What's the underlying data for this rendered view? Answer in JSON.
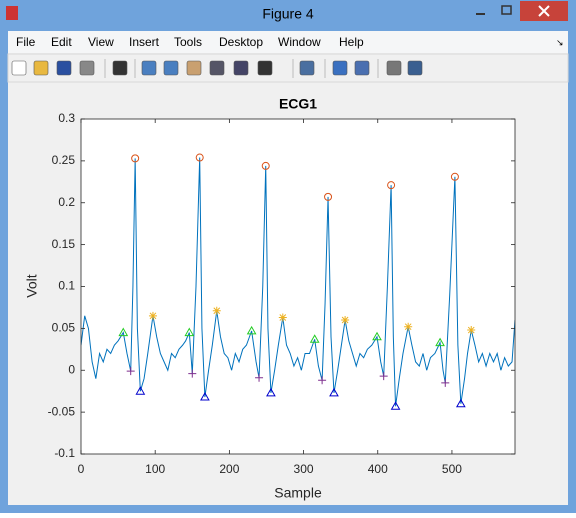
{
  "window": {
    "title": "Figure 4",
    "menu": [
      "File",
      "Edit",
      "View",
      "Insert",
      "Tools",
      "Desktop",
      "Window",
      "Help"
    ]
  },
  "chart_data": {
    "type": "line",
    "title": "ECG1",
    "xlabel": "Sample",
    "ylabel": "Volt",
    "xlim": [
      0,
      585
    ],
    "ylim": [
      -0.1,
      0.3
    ],
    "xticks": [
      0,
      100,
      200,
      300,
      400,
      500
    ],
    "yticks": [
      -0.1,
      -0.05,
      0,
      0.05,
      0.1,
      0.15,
      0.2,
      0.25,
      0.3
    ],
    "series": [
      {
        "color": "#0072bd",
        "marker": "none",
        "x": [
          0,
          5,
          10,
          15,
          20,
          25,
          30,
          35,
          40,
          45,
          50,
          57,
          62,
          67,
          70,
          73,
          76,
          80,
          85,
          90,
          97,
          102,
          107,
          112,
          117,
          122,
          127,
          132,
          137,
          141,
          146,
          150,
          155,
          160,
          163,
          167,
          172,
          177,
          183,
          188,
          193,
          198,
          203,
          208,
          213,
          218,
          223,
          230,
          236,
          240,
          245,
          249,
          252,
          256,
          261,
          266,
          272,
          277,
          282,
          287,
          292,
          297,
          302,
          308,
          315,
          320,
          325,
          329,
          333,
          337,
          341,
          346,
          351,
          356,
          361,
          366,
          371,
          376,
          381,
          386,
          392,
          399,
          404,
          408,
          413,
          418,
          421,
          424,
          429,
          434,
          441,
          446,
          451,
          456,
          461,
          466,
          471,
          477,
          484,
          488,
          491,
          497,
          504,
          508,
          512,
          517,
          521,
          526,
          531,
          536,
          541,
          546,
          551,
          556,
          561,
          566,
          571,
          576,
          581,
          585
        ],
        "values": [
          0.03,
          0.065,
          0.05,
          0.01,
          -0.01,
          0.02,
          0.01,
          0.025,
          0.02,
          0.03,
          0.035,
          0.045,
          0.02,
          -0.001,
          0.1,
          0.253,
          0.05,
          -0.025,
          -0.01,
          0.02,
          0.065,
          0.04,
          0.02,
          0.01,
          0.0,
          0.02,
          0.015,
          0.025,
          0.03,
          0.035,
          0.045,
          -0.004,
          0.1,
          0.254,
          0.05,
          -0.032,
          0.0,
          0.03,
          0.071,
          0.04,
          0.02,
          0.015,
          0.0,
          0.02,
          0.01,
          0.025,
          0.03,
          0.047,
          0.01,
          -0.009,
          0.1,
          0.244,
          0.05,
          -0.027,
          0.0,
          0.03,
          0.063,
          0.03,
          0.02,
          0.005,
          0.015,
          0.0,
          0.02,
          0.02,
          0.037,
          0.005,
          -0.012,
          0.08,
          0.207,
          0.04,
          -0.027,
          0.0,
          0.03,
          0.06,
          0.035,
          0.02,
          0.005,
          0.02,
          0.015,
          0.025,
          0.03,
          0.04,
          0.01,
          -0.007,
          0.1,
          0.221,
          0.04,
          -0.043,
          -0.01,
          0.02,
          0.052,
          0.03,
          0.01,
          0.005,
          0.02,
          0.0,
          0.015,
          0.02,
          0.033,
          0.0,
          -0.015,
          0.09,
          0.231,
          0.03,
          -0.04,
          -0.01,
          0.02,
          0.048,
          0.03,
          0.01,
          0.02,
          0.005,
          0.02,
          0.01,
          0.02,
          0.0,
          0.015,
          0.005,
          0.01,
          0.06
        ]
      },
      {
        "color": "#d95319",
        "marker": "o",
        "x": [
          73,
          160,
          249,
          333,
          418,
          504
        ],
        "values": [
          0.253,
          0.254,
          0.244,
          0.207,
          0.221,
          0.231
        ]
      },
      {
        "color": "#22cc22",
        "marker": "^",
        "x": [
          57,
          146,
          230,
          315,
          399,
          484
        ],
        "values": [
          0.045,
          0.045,
          0.047,
          0.037,
          0.04,
          0.033
        ]
      },
      {
        "color": "#edb120",
        "marker": "*",
        "x": [
          97,
          183,
          272,
          356,
          441,
          526
        ],
        "values": [
          0.065,
          0.071,
          0.063,
          0.06,
          0.052,
          0.048
        ]
      },
      {
        "color": "#7e2f8e",
        "marker": "+",
        "x": [
          67,
          150,
          240,
          325,
          408,
          491
        ],
        "values": [
          -0.001,
          -0.004,
          -0.009,
          -0.012,
          -0.007,
          -0.015
        ]
      },
      {
        "color": "#0000cc",
        "marker": "^",
        "x": [
          80,
          167,
          256,
          341,
          424,
          512
        ],
        "values": [
          -0.025,
          -0.032,
          -0.027,
          -0.027,
          -0.043,
          -0.04
        ]
      }
    ]
  }
}
